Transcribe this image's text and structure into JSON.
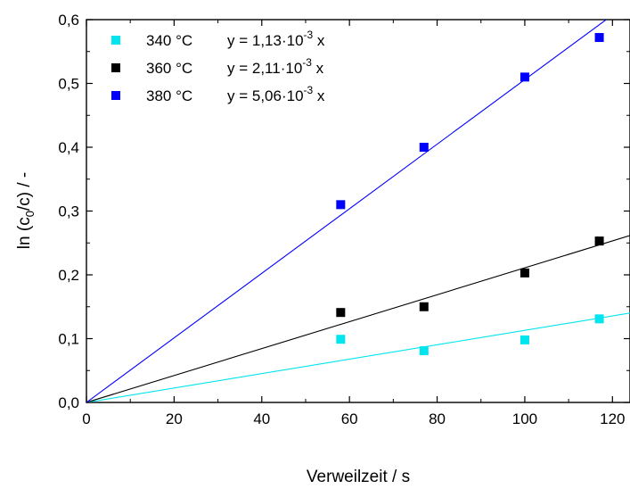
{
  "chart_data": {
    "type": "scatter",
    "xlabel": "Verweilzeit / s",
    "ylabel_parts": {
      "pre": "ln (c",
      "sub": "0",
      "post": "/c) / -"
    },
    "xlim": [
      0,
      124
    ],
    "ylim": [
      0,
      0.6
    ],
    "xticks": [
      0,
      20,
      40,
      60,
      80,
      100,
      120
    ],
    "xtick_labels": [
      "0",
      "20",
      "40",
      "60",
      "80",
      "100",
      "120"
    ],
    "yticks": [
      0,
      0.1,
      0.2,
      0.3,
      0.4,
      0.5,
      0.6
    ],
    "ytick_labels": [
      "0,0",
      "0,1",
      "0,2",
      "0,3",
      "0,4",
      "0,5",
      "0,6"
    ],
    "grid": false,
    "legend_position": "top-left",
    "series": [
      {
        "name": "340 °C",
        "fit_pre": "y = 1,13·10",
        "fit_exp": "-3",
        "fit_post": " x",
        "slope": 0.00113,
        "color": "#00e5ee",
        "x": [
          58,
          77,
          100,
          117
        ],
        "y": [
          0.099,
          0.081,
          0.098,
          0.131
        ]
      },
      {
        "name": "360 °C",
        "fit_pre": "y = 2,11·10",
        "fit_exp": "-3",
        "fit_post": " x",
        "slope": 0.00211,
        "color": "#000000",
        "x": [
          58,
          77,
          100,
          117
        ],
        "y": [
          0.141,
          0.15,
          0.203,
          0.253
        ]
      },
      {
        "name": "380 °C",
        "fit_pre": "y = 5,06·10",
        "fit_exp": "-3",
        "fit_post": " x",
        "slope": 0.00506,
        "color": "#0000ff",
        "x": [
          58,
          77,
          100,
          117
        ],
        "y": [
          0.31,
          0.4,
          0.51,
          0.572
        ]
      }
    ]
  }
}
